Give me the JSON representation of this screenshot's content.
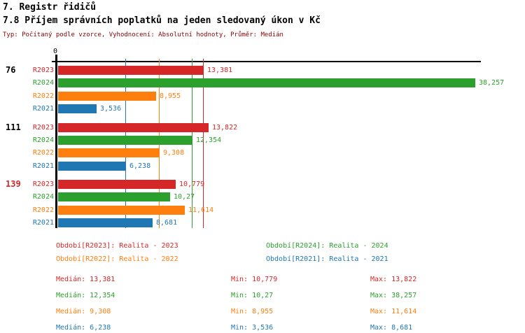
{
  "header": {
    "title_line1": "7. Registr řidičů",
    "title_line2": "7.8 Příjem správních poplatků na jeden sledovaný úkon v Kč",
    "subtitle": "Typ: Počítaný podle vzorce, Vyhodnocení: Absolutní hodnoty, Průměr: Medián"
  },
  "colors": {
    "R2023": "#d62728",
    "R2024": "#2ca02c",
    "R2022": "#ff7f0e",
    "R2021": "#1f77b4",
    "subtitle": "#8b0000",
    "axis": "#000000",
    "group_label_default": "#000000"
  },
  "chart_data": {
    "type": "bar",
    "orientation": "horizontal",
    "title": "7.8 Příjem správních poplatků na jeden sledovaný úkon v Kč",
    "unit": "Kč",
    "x_axis": {
      "zero_label": "0",
      "min": 0,
      "max": 38.257,
      "gridlines": "median lines per series"
    },
    "series_order": [
      "R2023",
      "R2024",
      "R2022",
      "R2021"
    ],
    "groups": [
      {
        "label": "76",
        "label_color": "#000000",
        "bars": [
          {
            "series": "R2023",
            "value": 13.381,
            "display": "13,381"
          },
          {
            "series": "R2024",
            "value": 38.257,
            "display": "38,257"
          },
          {
            "series": "R2022",
            "value": 8.955,
            "display": "8,955"
          },
          {
            "series": "R2021",
            "value": 3.536,
            "display": "3,536"
          }
        ]
      },
      {
        "label": "111",
        "label_color": "#000000",
        "bars": [
          {
            "series": "R2023",
            "value": 13.822,
            "display": "13,822"
          },
          {
            "series": "R2024",
            "value": 12.354,
            "display": "12,354"
          },
          {
            "series": "R2022",
            "value": 9.308,
            "display": "9,308"
          },
          {
            "series": "R2021",
            "value": 6.238,
            "display": "6,238"
          }
        ]
      },
      {
        "label": "139",
        "label_color": "#d62728",
        "bars": [
          {
            "series": "R2023",
            "value": 10.779,
            "display": "10,779"
          },
          {
            "series": "R2024",
            "value": 10.27,
            "display": "10,27"
          },
          {
            "series": "R2022",
            "value": 11.614,
            "display": "11,614"
          },
          {
            "series": "R2021",
            "value": 8.681,
            "display": "8,681"
          }
        ]
      }
    ],
    "median_lines": [
      {
        "series": "R2021",
        "value": 6.238
      },
      {
        "series": "R2022",
        "value": 9.308
      },
      {
        "series": "R2024",
        "value": 12.354
      },
      {
        "series": "R2023",
        "value": 13.381
      }
    ],
    "legend_position": "below"
  },
  "legend": {
    "rows": [
      [
        {
          "series": "R2023",
          "text": "Období[R2023]: Realita - 2023"
        },
        {
          "series": "R2024",
          "text": "Období[R2024]: Realita - 2024"
        }
      ],
      [
        {
          "series": "R2022",
          "text": "Období[R2022]: Realita - 2022"
        },
        {
          "series": "R2021",
          "text": "Období[R2021]: Realita - 2021"
        }
      ]
    ]
  },
  "stats": [
    {
      "series": "R2023",
      "median": "Medián: 13,381",
      "min": "Min: 10,779",
      "max": "Max: 13,822"
    },
    {
      "series": "R2024",
      "median": "Medián: 12,354",
      "min": "Min: 10,27",
      "max": "Max: 38,257"
    },
    {
      "series": "R2022",
      "median": "Medián: 9,308",
      "min": "Min: 8,955",
      "max": "Max: 11,614"
    },
    {
      "series": "R2021",
      "median": "Medián: 6,238",
      "min": "Min: 3,536",
      "max": "Max: 8,681"
    }
  ]
}
